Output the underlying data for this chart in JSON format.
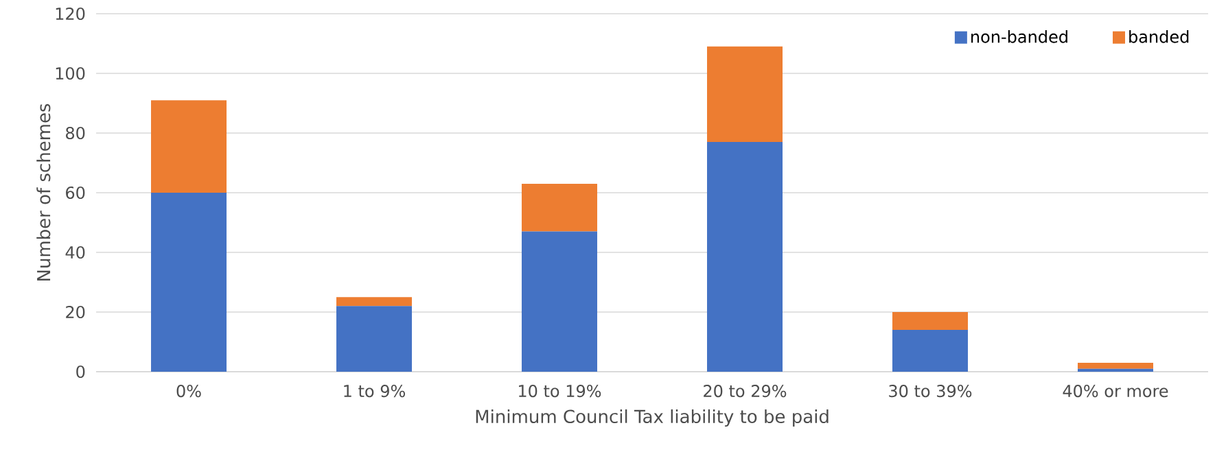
{
  "chart_data": {
    "type": "bar",
    "stacked": true,
    "xlabel": "Minimum Council Tax liability to be paid",
    "ylabel": "Number of schemes",
    "categories": [
      "0%",
      "1 to 9%",
      "10 to 19%",
      "20 to 29%",
      "30 to 39%",
      "40% or more"
    ],
    "series": [
      {
        "name": "non-banded",
        "color": "#4472c4",
        "values": [
          60,
          22,
          47,
          77,
          14,
          1
        ]
      },
      {
        "name": "banded",
        "color": "#ed7d31",
        "values": [
          31,
          3,
          16,
          32,
          6,
          2
        ]
      }
    ],
    "ylim": [
      0,
      120
    ],
    "yticks": [
      0,
      20,
      40,
      60,
      80,
      100,
      120
    ],
    "grid": "y",
    "legend": "top right"
  }
}
